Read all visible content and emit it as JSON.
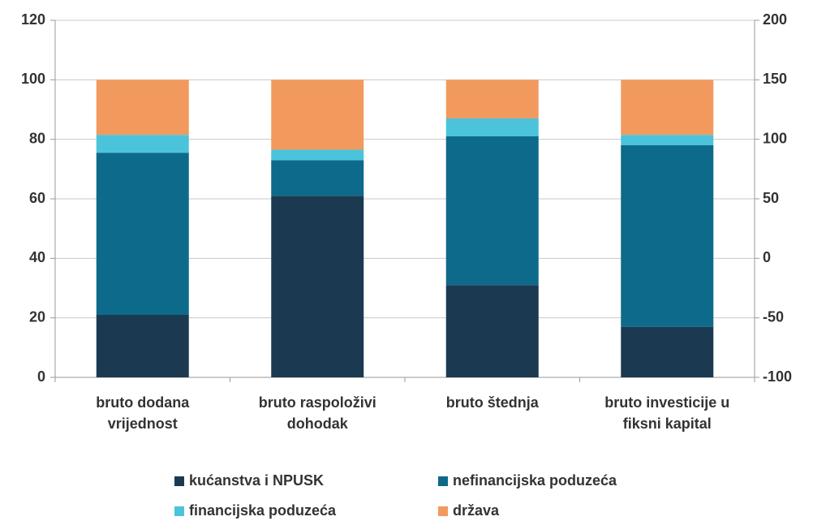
{
  "chart_data": {
    "type": "stacked_bar",
    "categories": [
      "bruto dodana vrijednost",
      "bruto raspoloživi dohodak",
      "bruto štednja",
      "bruto investicije u fiksni kapital"
    ],
    "series": [
      {
        "name": "kućanstva i NPUSK",
        "color": "#1b3a52",
        "values": [
          21,
          61,
          31,
          17
        ]
      },
      {
        "name": "nefinancijska poduzeća",
        "color": "#0d6a8a",
        "values": [
          54.5,
          12,
          50,
          61
        ]
      },
      {
        "name": "financijska poduzeća",
        "color": "#4bc4db",
        "values": [
          6,
          3.5,
          6,
          3.5
        ]
      },
      {
        "name": "država",
        "color": "#f29a5e",
        "values": [
          18.5,
          23.5,
          13,
          18.5
        ]
      }
    ],
    "ylim": [
      0,
      120
    ],
    "yticks": [
      0,
      20,
      40,
      60,
      80,
      100,
      120
    ],
    "y2lim": [
      -100,
      200
    ],
    "y2ticks": [
      -100,
      -50,
      0,
      50,
      100,
      150,
      200
    ],
    "grid": true
  }
}
